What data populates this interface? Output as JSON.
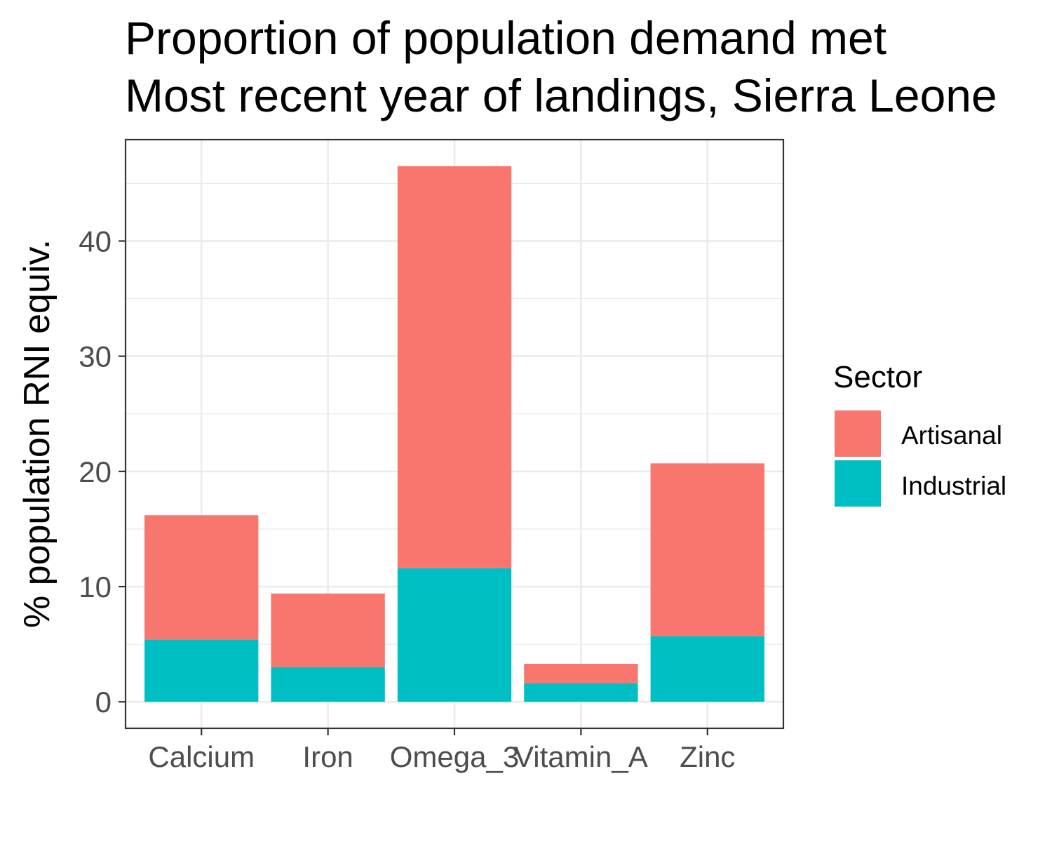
{
  "chart_data": {
    "type": "bar",
    "stacked": true,
    "title": "Proportion of population demand met",
    "subtitle": "Most recent year of landings, Sierra Leone",
    "xlabel": "",
    "ylabel": "% population RNI equiv.",
    "categories": [
      "Calcium",
      "Iron",
      "Omega_3",
      "Vitamin_A",
      "Zinc"
    ],
    "series": [
      {
        "name": "Industrial",
        "values": [
          5.4,
          3.0,
          11.6,
          1.6,
          5.7
        ],
        "color": "#00BFC4"
      },
      {
        "name": "Artisanal",
        "values": [
          10.8,
          6.4,
          34.9,
          1.7,
          15.0
        ],
        "color": "#F8766D"
      }
    ],
    "ylim": [
      -2.3,
      48.8
    ],
    "yticks": [
      0,
      10,
      20,
      30,
      40
    ],
    "grid": true,
    "legend": {
      "title": "Sector",
      "position": "right",
      "items": [
        {
          "label": "Artisanal",
          "color": "#F8766D"
        },
        {
          "label": "Industrial",
          "color": "#00BFC4"
        }
      ]
    }
  }
}
